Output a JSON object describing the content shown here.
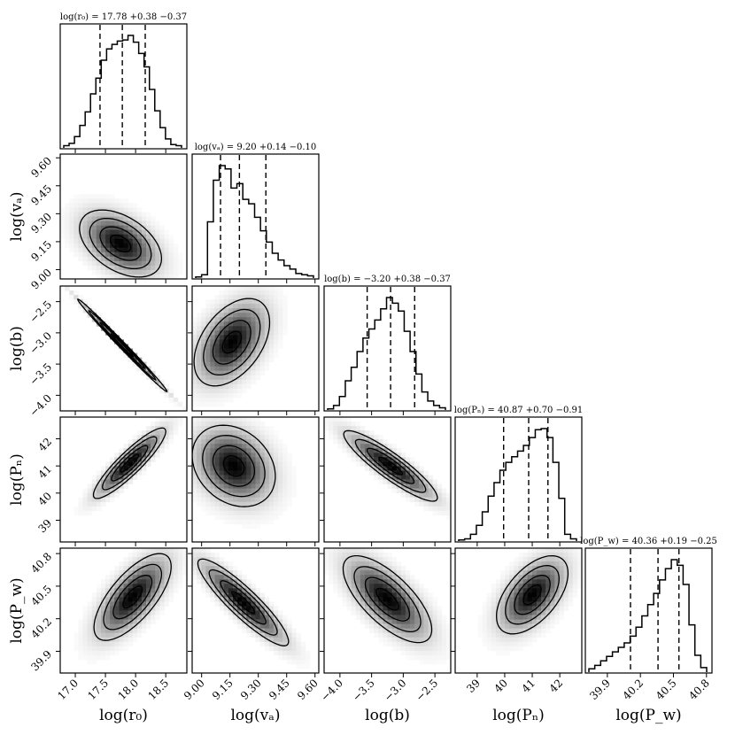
{
  "chart_data": {
    "type": "corner",
    "parameters": [
      {
        "name": "log(r0)",
        "label": "log(r₀)",
        "title": "log(r₀) = 17.78 +0.38 −0.37",
        "range": [
          16.75,
          18.85
        ],
        "ticks": [
          17.0,
          17.5,
          18.0,
          18.5
        ],
        "tick_labels": [
          "17.0",
          "17.5",
          "18.0",
          "18.5"
        ],
        "median": 17.78,
        "q16": 17.41,
        "q84": 18.16,
        "hist_counts": [
          2,
          4,
          10,
          20,
          32,
          48,
          62,
          78,
          88,
          92,
          95,
          96,
          100,
          94,
          84,
          72,
          52,
          33,
          18,
          8,
          3,
          2
        ]
      },
      {
        "name": "log(va)",
        "label": "log(vₐ)",
        "title": "log(vₐ) = 9.20 +0.14 −0.10",
        "range": [
          8.95,
          9.62
        ],
        "ticks": [
          9.0,
          9.15,
          9.3,
          9.45,
          9.6
        ],
        "tick_labels": [
          "9.00",
          "9.15",
          "9.30",
          "9.45",
          "9.60"
        ],
        "median": 9.2,
        "q16": 9.1,
        "q84": 9.34,
        "hist_counts": [
          1,
          3,
          50,
          87,
          100,
          97,
          80,
          84,
          70,
          66,
          54,
          42,
          32,
          22,
          16,
          11,
          8,
          4,
          3,
          2
        ]
      },
      {
        "name": "log(b)",
        "label": "log(b)",
        "title": "log(b) = −3.20 +0.38 −0.37",
        "range": [
          -4.25,
          -2.25
        ],
        "ticks": [
          -4.0,
          -3.5,
          -3.0,
          -2.5
        ],
        "tick_labels": [
          "−4.0",
          "−3.5",
          "−3.0",
          "−2.5"
        ],
        "median": -3.2,
        "q16": -3.57,
        "q84": -2.82,
        "hist_counts": [
          1,
          4,
          12,
          26,
          38,
          52,
          64,
          72,
          80,
          90,
          100,
          95,
          88,
          70,
          52,
          32,
          16,
          8,
          4,
          2
        ]
      },
      {
        "name": "log(Pn)",
        "label": "log(Pₙ)",
        "title": "log(Pₙ) = 40.87 +0.70 −0.91",
        "range": [
          38.2,
          42.8
        ],
        "ticks": [
          39,
          40,
          41,
          42
        ],
        "tick_labels": [
          "39",
          "40",
          "41",
          "42"
        ],
        "median": 40.87,
        "q16": 39.96,
        "q84": 41.57,
        "hist_counts": [
          1,
          2,
          6,
          14,
          26,
          40,
          52,
          63,
          70,
          75,
          80,
          85,
          92,
          99,
          100,
          92,
          70,
          38,
          6,
          2
        ]
      },
      {
        "name": "log(Pw)",
        "label": "log(P_w)",
        "title": "log(P_w) = 40.36 +0.19 −0.25",
        "range": [
          39.7,
          40.85
        ],
        "ticks": [
          39.9,
          40.2,
          40.5,
          40.8
        ],
        "tick_labels": [
          "39.9",
          "40.2",
          "40.5",
          "40.8"
        ],
        "median": 40.36,
        "q16": 40.11,
        "q84": 40.55,
        "hist_counts": [
          3,
          6,
          10,
          14,
          18,
          22,
          26,
          32,
          40,
          50,
          60,
          70,
          82,
          92,
          100,
          95,
          78,
          42,
          15,
          4
        ]
      }
    ],
    "pairs": [
      {
        "x": "log(r0)",
        "y": "log(va)",
        "center": [
          17.75,
          9.14
        ],
        "sigma": [
          0.34,
          0.09
        ],
        "rho": -0.45
      },
      {
        "x": "log(r0)",
        "y": "log(b)",
        "center": [
          17.78,
          -3.2
        ],
        "sigma": [
          0.37,
          0.37
        ],
        "rho": -0.995
      },
      {
        "x": "log(r0)",
        "y": "log(Pn)",
        "center": [
          17.9,
          41.1
        ],
        "sigma": [
          0.3,
          0.65
        ],
        "rho": 0.9
      },
      {
        "x": "log(r0)",
        "y": "log(Pw)",
        "center": [
          17.95,
          40.4
        ],
        "sigma": [
          0.32,
          0.2
        ],
        "rho": 0.7
      },
      {
        "x": "log(va)",
        "y": "log(b)",
        "center": [
          9.16,
          -3.15
        ],
        "sigma": [
          0.1,
          0.35
        ],
        "rho": 0.45
      },
      {
        "x": "log(va)",
        "y": "log(Pn)",
        "center": [
          9.17,
          41.0
        ],
        "sigma": [
          0.11,
          0.75
        ],
        "rho": -0.25
      },
      {
        "x": "log(va)",
        "y": "log(Pw)",
        "center": [
          9.22,
          40.35
        ],
        "sigma": [
          0.12,
          0.2
        ],
        "rho": -0.9
      },
      {
        "x": "log(b)",
        "y": "log(Pn)",
        "center": [
          -3.2,
          41.0
        ],
        "sigma": [
          0.37,
          0.65
        ],
        "rho": -0.9
      },
      {
        "x": "log(b)",
        "y": "log(Pw)",
        "center": [
          -3.25,
          40.38
        ],
        "sigma": [
          0.35,
          0.2
        ],
        "rho": -0.7
      },
      {
        "x": "log(Pn)",
        "y": "log(Pw)",
        "center": [
          41.0,
          40.42
        ],
        "sigma": [
          0.65,
          0.18
        ],
        "rho": 0.55
      }
    ],
    "contour_levels": [
      0.5,
      1.0,
      1.5,
      2.0
    ]
  }
}
